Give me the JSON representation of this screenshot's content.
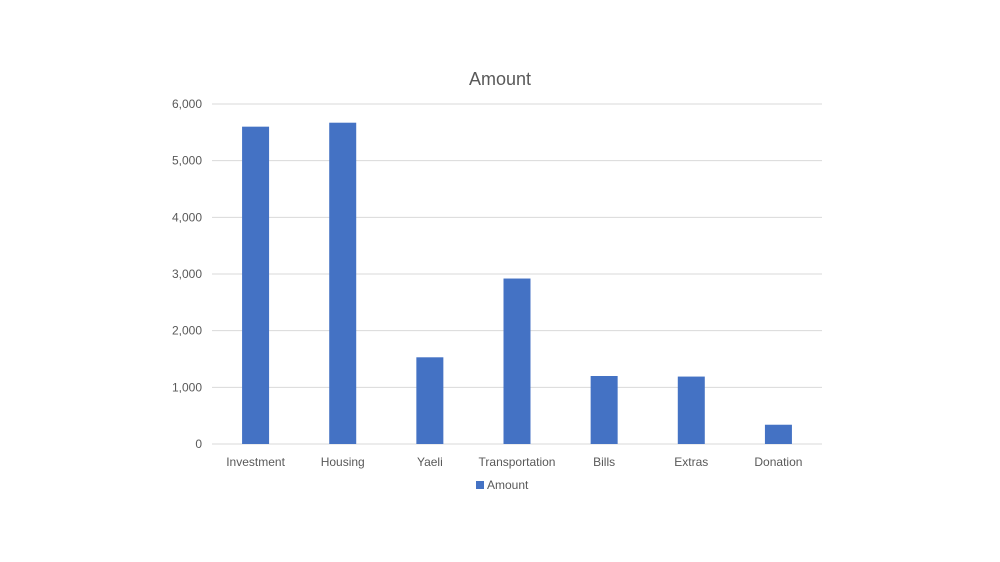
{
  "chart_data": {
    "type": "bar",
    "title": "Amount",
    "categories": [
      "Investment",
      "Housing",
      "Yaeli",
      "Transportation",
      "Bills",
      "Extras",
      "Donation"
    ],
    "series": [
      {
        "name": "Amount",
        "color": "#4472c4",
        "values": [
          5600,
          5670,
          1530,
          2920,
          1200,
          1190,
          340
        ]
      }
    ],
    "xlabel": "",
    "ylabel": "",
    "ylim": [
      0,
      6000
    ],
    "yticks": [
      0,
      1000,
      2000,
      3000,
      4000,
      5000,
      6000
    ],
    "ytick_labels": [
      "0",
      "1,000",
      "2,000",
      "3,000",
      "4,000",
      "5,000",
      "6,000"
    ],
    "grid": true,
    "legend_position": "bottom"
  }
}
